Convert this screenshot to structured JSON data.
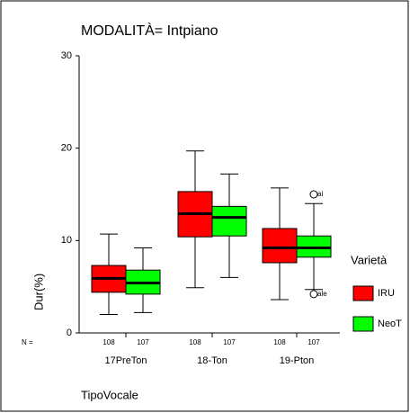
{
  "chart_data": {
    "type": "box",
    "title": "MODALITÀ= Intpiano",
    "y_label": "Dur(%)",
    "x_label": "TipoVocale",
    "n_prefix": "N =",
    "legend_title": "Varietà",
    "categories": [
      "17PreTon",
      "18-Ton",
      "19-Pton"
    ],
    "ylim": [
      0,
      30
    ],
    "yticks": [
      0,
      10,
      20,
      30
    ],
    "series": [
      {
        "name": "IRU",
        "color": "#ff0000",
        "n": [
          108,
          108,
          108
        ],
        "values": [
          {
            "whislo": 2.0,
            "q1": 4.4,
            "med": 5.9,
            "q3": 7.3,
            "whishi": 10.7
          },
          {
            "whislo": 4.9,
            "q1": 10.4,
            "med": 12.9,
            "q3": 15.3,
            "whishi": 19.7
          },
          {
            "whislo": 3.6,
            "q1": 7.6,
            "med": 9.2,
            "q3": 11.3,
            "whishi": 15.7
          }
        ]
      },
      {
        "name": "NeoT",
        "color": "#00ff00",
        "n": [
          107,
          107,
          107
        ],
        "values": [
          {
            "whislo": 2.2,
            "q1": 4.2,
            "med": 5.4,
            "q3": 6.8,
            "whishi": 9.2
          },
          {
            "whislo": 6.0,
            "q1": 10.5,
            "med": 12.5,
            "q3": 13.7,
            "whishi": 17.2
          },
          {
            "whislo": 4.7,
            "q1": 8.2,
            "med": 9.2,
            "q3": 10.5,
            "whishi": 14.0,
            "outliers": [
              {
                "value": 15.0,
                "case": "ai"
              },
              {
                "value": 4.2,
                "case": "ale"
              }
            ]
          }
        ]
      }
    ]
  }
}
